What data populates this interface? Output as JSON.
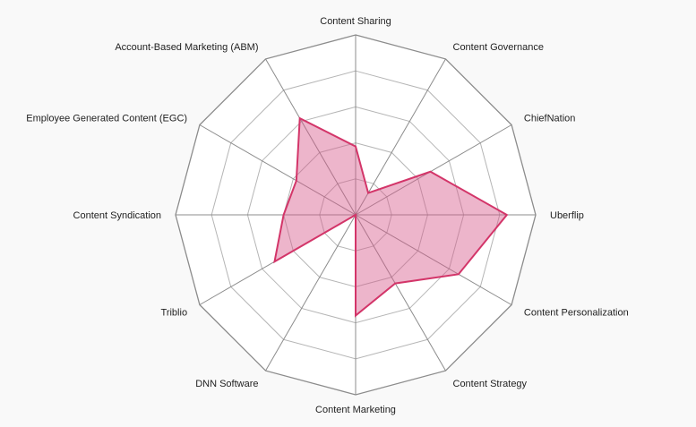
{
  "chart_data": {
    "type": "radar",
    "title": "",
    "axes": [
      "Content Sharing",
      "Content Governance",
      "ChiefNation",
      "Uberflip",
      "Content Personalization",
      "Content Strategy",
      "Content Marketing",
      "DNN Software",
      "Triblio",
      "Content Syndication",
      "Employee Generated Content (EGC)",
      "Account-Based Marketing (ABM)"
    ],
    "series": [
      {
        "values": [
          1.9,
          0.7,
          2.4,
          4.2,
          3.3,
          2.2,
          2.8,
          0.0,
          2.6,
          2.0,
          1.9,
          3.1
        ]
      }
    ],
    "range": [
      0,
      5
    ],
    "rings": 5,
    "colors": {
      "fill": "rgba(214,90,140,0.45)",
      "stroke": "#d33569",
      "grid": "#b5b5b5",
      "spoke": "#8c8c8c",
      "background": "#ffffff"
    }
  }
}
